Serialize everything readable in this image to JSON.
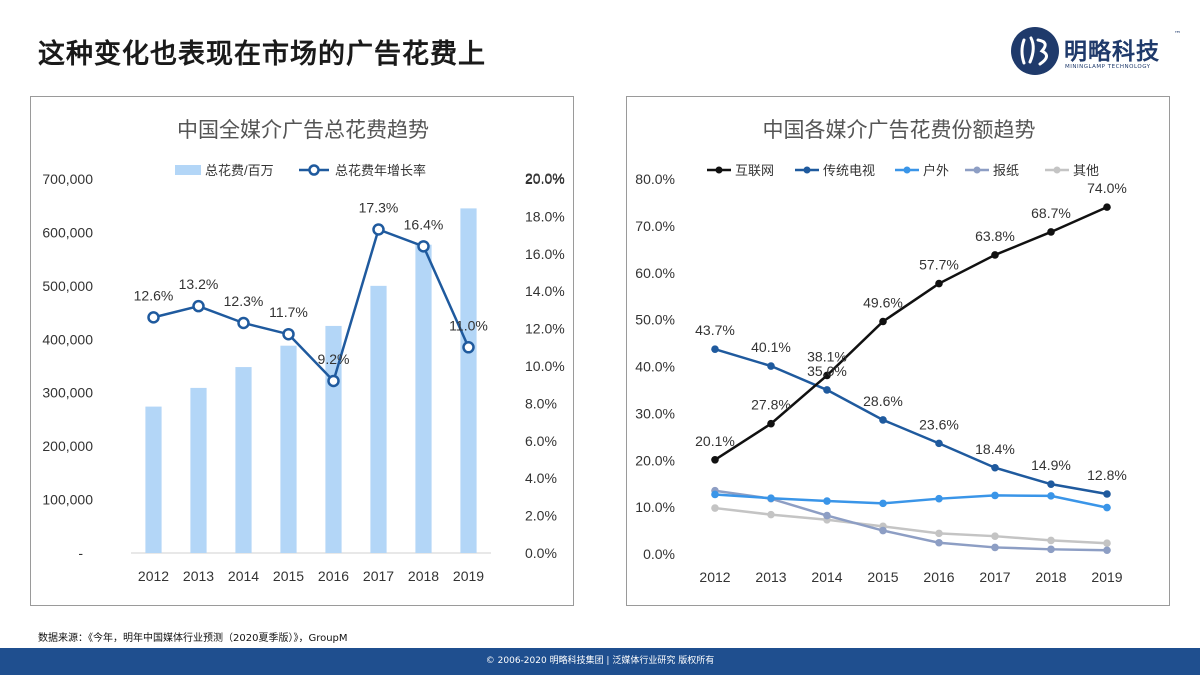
{
  "page": {
    "title": "这种变化也表现在市场的广告花费上",
    "source": "数据来源：《今年，明年中国媒体行业预测（2020夏季版）》，GroupM",
    "footer": "© 2006-2020 明略科技集团 | 泛媒体行业研究 版权所有"
  },
  "logo": {
    "name": "明略科技",
    "tm": "™",
    "subtitle": "MININGLAMP TECHNOLOGY"
  },
  "colors": {
    "bar": "#b3d6f7",
    "growth_line": "#1f5a9e",
    "internet": "#111111",
    "tv": "#1f5a9e",
    "outdoor": "#3a95e8",
    "newspaper": "#8d9ec4",
    "other": "#c4c4c4",
    "footer": "#1f4f8f"
  },
  "chart_data": [
    {
      "type": "bar",
      "title": "中国全媒介广告总花费趋势",
      "categories": [
        "2012",
        "2013",
        "2014",
        "2015",
        "2016",
        "2017",
        "2018",
        "2019"
      ],
      "series": [
        {
          "name": "总花费/百万",
          "type": "bar",
          "axis": "left",
          "values": [
            274000,
            309000,
            348000,
            388000,
            425000,
            500000,
            577000,
            645000
          ]
        },
        {
          "name": "总花费年增长率",
          "type": "line",
          "axis": "right",
          "values": [
            12.6,
            13.2,
            12.3,
            11.7,
            9.2,
            17.3,
            16.4,
            11.0
          ],
          "labels": [
            "12.6%",
            "13.2%",
            "12.3%",
            "11.7%",
            "9.2%",
            "17.3%",
            "16.4%",
            "11.0%"
          ]
        }
      ],
      "y_left": {
        "ylim": [
          0,
          700000
        ],
        "ticks": [
          "-",
          "100,000",
          "200,000",
          "300,000",
          "400,000",
          "500,000",
          "600,000",
          "700,000"
        ]
      },
      "y_right": {
        "ylim": [
          0,
          20
        ],
        "ticks": [
          "0.0%",
          "2.0%",
          "4.0%",
          "6.0%",
          "8.0%",
          "10.0%",
          "12.0%",
          "14.0%",
          "16.0%",
          "18.0%",
          "20.0%"
        ]
      },
      "legend": "top",
      "grid": false
    },
    {
      "type": "line",
      "title": "中国各媒介广告花费份额趋势",
      "categories": [
        "2012",
        "2013",
        "2014",
        "2015",
        "2016",
        "2017",
        "2018",
        "2019"
      ],
      "series": [
        {
          "name": "互联网",
          "color_key": "internet",
          "values": [
            20.1,
            27.8,
            38.1,
            49.6,
            57.7,
            63.8,
            68.7,
            74.0
          ],
          "labels": [
            "20.1%",
            "27.8%",
            "38.1%",
            "49.6%",
            "57.7%",
            "63.8%",
            "68.7%",
            "74.0%"
          ]
        },
        {
          "name": "传统电视",
          "color_key": "tv",
          "values": [
            43.7,
            40.1,
            35.0,
            28.6,
            23.6,
            18.4,
            14.9,
            12.8
          ],
          "labels": [
            "43.7%",
            "40.1%",
            "35.0%",
            "28.6%",
            "23.6%",
            "18.4%",
            "14.9%",
            "12.8%"
          ]
        },
        {
          "name": "户外",
          "color_key": "outdoor",
          "values": [
            12.7,
            11.9,
            11.3,
            10.8,
            11.8,
            12.5,
            12.4,
            9.9
          ]
        },
        {
          "name": "报纸",
          "color_key": "newspaper",
          "values": [
            13.5,
            11.8,
            8.2,
            5.0,
            2.4,
            1.4,
            1.0,
            0.8
          ]
        },
        {
          "name": "其他",
          "color_key": "other",
          "values": [
            9.8,
            8.4,
            7.3,
            5.9,
            4.4,
            3.8,
            2.9,
            2.3
          ]
        }
      ],
      "ylim": [
        0,
        80
      ],
      "y_ticks": [
        "0.0%",
        "10.0%",
        "20.0%",
        "30.0%",
        "40.0%",
        "50.0%",
        "60.0%",
        "70.0%",
        "80.0%"
      ],
      "legend": "top",
      "grid": false
    }
  ]
}
